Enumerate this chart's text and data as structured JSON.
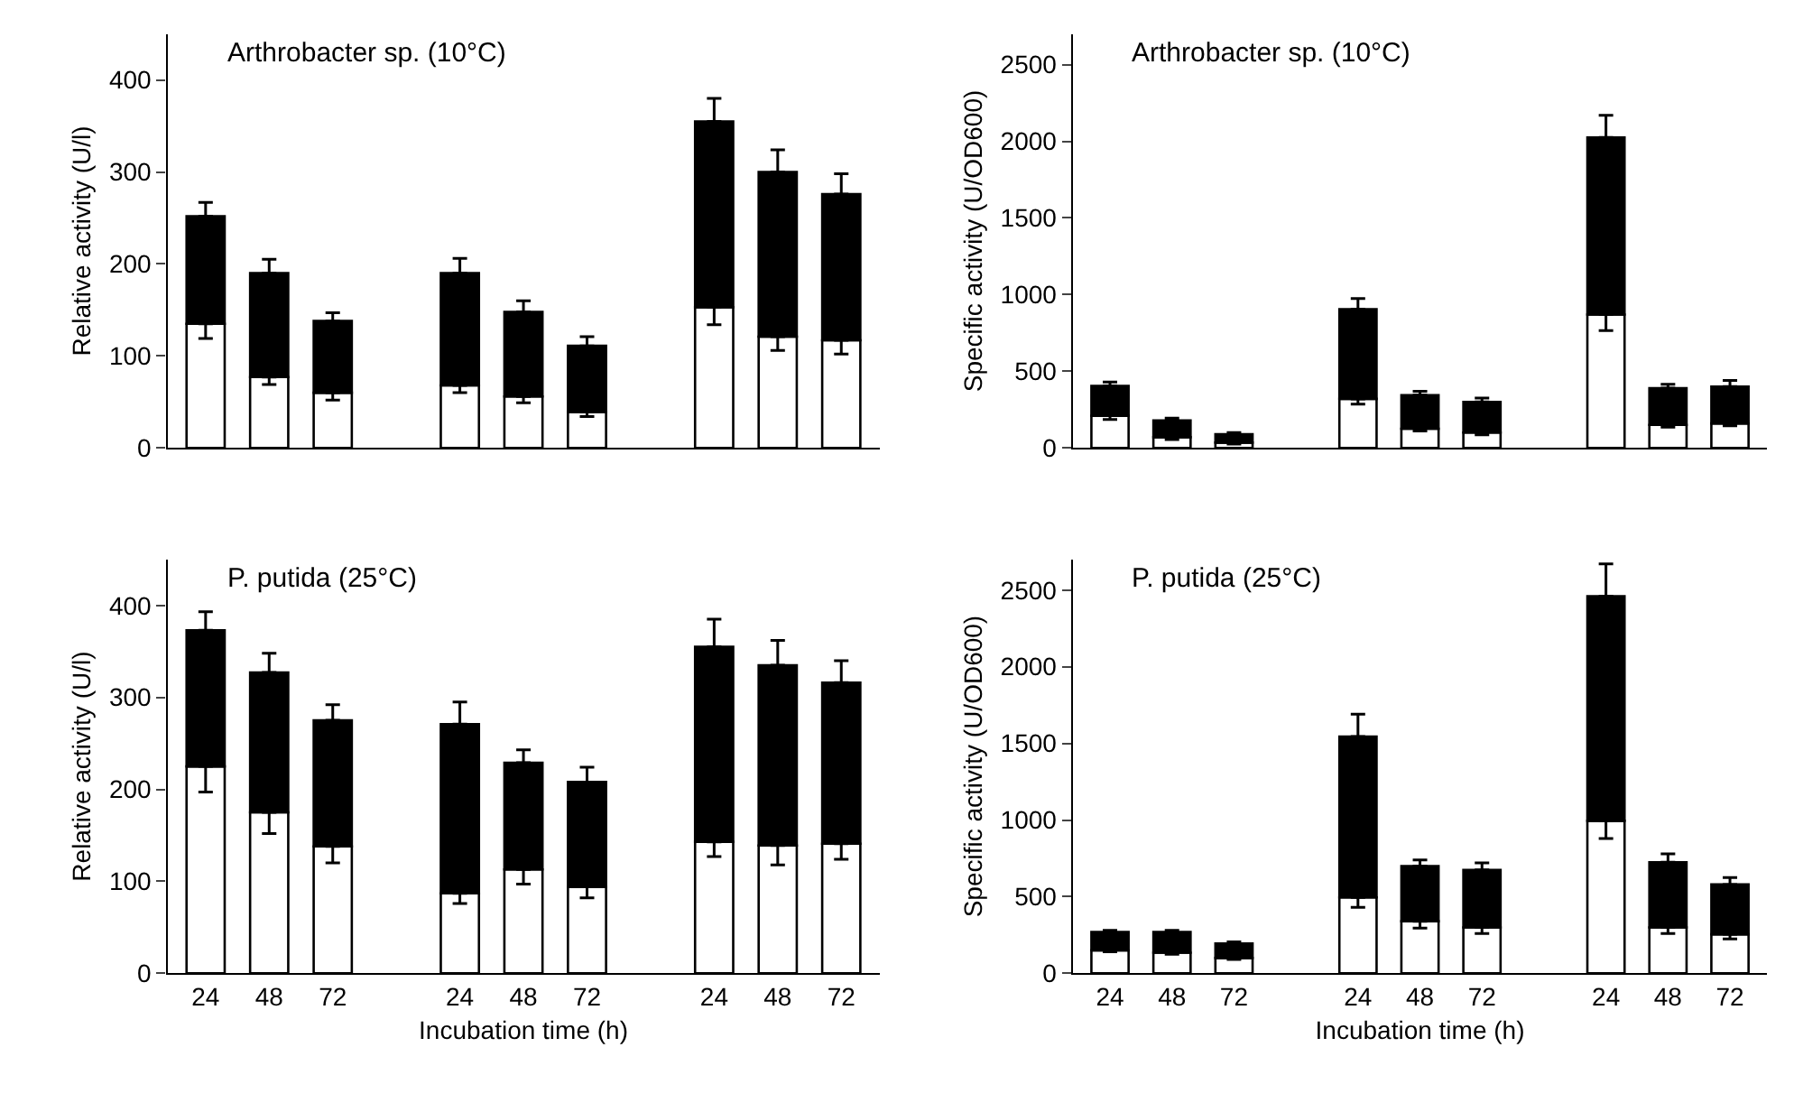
{
  "chart_data": [
    {
      "type": "bar",
      "stacked": true,
      "title": "Arthrobacter sp. (10°C)",
      "ylabel": "Relative activity (U/l)",
      "tick_labels": "y",
      "categories": [
        "24",
        "48",
        "72",
        null,
        "24",
        "48",
        "72",
        null,
        "24",
        "48",
        "72"
      ],
      "ylim": [
        0,
        450
      ],
      "yticks": [
        0,
        100,
        200,
        300,
        400
      ],
      "series": [
        {
          "color": "#ffffff",
          "values": [
            135,
            77,
            60,
            null,
            68,
            56,
            39,
            null,
            153,
            121,
            117
          ],
          "errors": [
            [
              119,
              135
            ],
            [
              69,
              77
            ],
            [
              52,
              60
            ],
            null,
            [
              60,
              68
            ],
            [
              49,
              56
            ],
            [
              34,
              39
            ],
            null,
            [
              134,
              153
            ],
            [
              106,
              121
            ],
            [
              102,
              117
            ]
          ]
        },
        {
          "color": "#000000",
          "values": [
            117,
            113,
            78,
            null,
            122,
            92,
            72,
            null,
            202,
            179,
            159
          ],
          "errors": [
            [
              252,
              267
            ],
            [
              190,
              205
            ],
            [
              138,
              147
            ],
            null,
            [
              190,
              206
            ],
            [
              148,
              160
            ],
            [
              111,
              121
            ],
            null,
            [
              355,
              380
            ],
            [
              300,
              324
            ],
            [
              276,
              298
            ]
          ]
        }
      ]
    },
    {
      "type": "bar",
      "stacked": true,
      "title": "Arthrobacter sp. (10°C)",
      "ylabel": "Specific activity (U/OD600)",
      "tick_labels": "y",
      "categories": [
        "24",
        "48",
        "72",
        null,
        "24",
        "48",
        "72",
        null,
        "24",
        "48",
        "72"
      ],
      "ylim": [
        0,
        2700
      ],
      "yticks": [
        0,
        500,
        1000,
        1500,
        2000,
        2500
      ],
      "series": [
        {
          "color": "#ffffff",
          "values": [
            210,
            70,
            35,
            null,
            320,
            125,
            100,
            null,
            870,
            150,
            160
          ],
          "errors": [
            [
              185,
              210
            ],
            [
              55,
              70
            ],
            [
              25,
              35
            ],
            null,
            [
              285,
              320
            ],
            [
              110,
              125
            ],
            [
              85,
              100
            ],
            null,
            [
              765,
              870
            ],
            [
              135,
              150
            ],
            [
              145,
              160
            ]
          ]
        },
        {
          "color": "#000000",
          "values": [
            195,
            110,
            55,
            null,
            585,
            220,
            200,
            null,
            1155,
            240,
            240
          ],
          "errors": [
            [
              405,
              430
            ],
            [
              180,
              195
            ],
            [
              90,
              100
            ],
            null,
            [
              905,
              975
            ],
            [
              345,
              370
            ],
            [
              300,
              325
            ],
            null,
            [
              2025,
              2170
            ],
            [
              390,
              415
            ],
            [
              400,
              440
            ]
          ]
        }
      ]
    },
    {
      "type": "bar",
      "stacked": true,
      "title": "P. putida (25°C)",
      "ylabel": "Relative activity (U/l)",
      "xlabel": "Incubation time (h)",
      "categories": [
        "24",
        "48",
        "72",
        null,
        "24",
        "48",
        "72",
        null,
        "24",
        "48",
        "72"
      ],
      "ylim": [
        0,
        450
      ],
      "yticks": [
        0,
        100,
        200,
        300,
        400
      ],
      "series": [
        {
          "color": "#ffffff",
          "values": [
            225,
            175,
            138,
            null,
            87,
            113,
            94,
            null,
            143,
            139,
            141
          ],
          "errors": [
            [
              197,
              225
            ],
            [
              152,
              175
            ],
            [
              120,
              138
            ],
            null,
            [
              76,
              87
            ],
            [
              97,
              113
            ],
            [
              82,
              94
            ],
            null,
            [
              127,
              143
            ],
            [
              118,
              139
            ],
            [
              124,
              141
            ]
          ]
        },
        {
          "color": "#000000",
          "values": [
            148,
            152,
            137,
            null,
            184,
            116,
            114,
            null,
            212,
            196,
            175
          ],
          "errors": [
            [
              373,
              393
            ],
            [
              327,
              348
            ],
            [
              275,
              292
            ],
            null,
            [
              271,
              295
            ],
            [
              229,
              243
            ],
            [
              208,
              224
            ],
            null,
            [
              355,
              385
            ],
            [
              335,
              362
            ],
            [
              316,
              340
            ]
          ]
        }
      ]
    },
    {
      "type": "bar",
      "stacked": true,
      "title": "P. putida (25°C)",
      "ylabel": "Specific activity (U/OD600)",
      "xlabel": "Incubation time (h)",
      "categories": [
        "24",
        "48",
        "72",
        null,
        "24",
        "48",
        "72",
        null,
        "24",
        "48",
        "72"
      ],
      "ylim": [
        0,
        2700
      ],
      "yticks": [
        0,
        500,
        1000,
        1500,
        2000,
        2500
      ],
      "series": [
        {
          "color": "#ffffff",
          "values": [
            150,
            135,
            100,
            null,
            495,
            340,
            300,
            null,
            995,
            300,
            255
          ],
          "errors": [
            [
              140,
              150
            ],
            [
              125,
              135
            ],
            [
              90,
              100
            ],
            null,
            [
              430,
              495
            ],
            [
              295,
              340
            ],
            [
              260,
              300
            ],
            null,
            [
              880,
              995
            ],
            [
              260,
              300
            ],
            [
              225,
              255
            ]
          ]
        },
        {
          "color": "#000000",
          "values": [
            120,
            135,
            95,
            null,
            1050,
            360,
            375,
            null,
            1465,
            425,
            325
          ],
          "errors": [
            [
              270,
              280
            ],
            [
              270,
              280
            ],
            [
              195,
              205
            ],
            null,
            [
              1545,
              1690
            ],
            [
              700,
              740
            ],
            [
              675,
              720
            ],
            null,
            [
              2460,
              2670
            ],
            [
              725,
              780
            ],
            [
              580,
              625
            ]
          ]
        }
      ]
    }
  ]
}
